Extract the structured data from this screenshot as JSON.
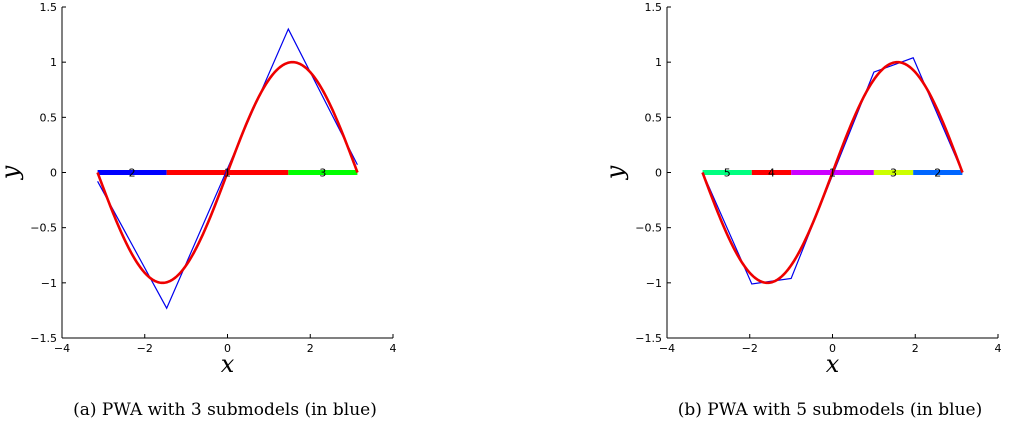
{
  "chart_data": [
    {
      "type": "line",
      "caption": "(a) PWA with 3 submodels (in blue)",
      "xlabel": "x",
      "ylabel": "y",
      "xlim": [
        -4,
        4
      ],
      "ylim": [
        -1.5,
        1.5
      ],
      "xticks": [
        "−4",
        "−2",
        "0",
        "2",
        "4"
      ],
      "yticks": [
        "−1.5",
        "−1",
        "−0.5",
        "0",
        "0.5",
        "1",
        "1.5"
      ],
      "series": [
        {
          "color": "#0000ee",
          "x": [
            -3.14,
            -1.47,
            1.47,
            3.14
          ],
          "y": [
            -0.08,
            -1.23,
            1.3,
            0.07
          ]
        },
        {
          "color": "#ee0000",
          "function": "sin",
          "x_range": [
            -3.14159,
            3.14159
          ]
        }
      ],
      "segments": [
        {
          "label": "2",
          "color": "#0000ff",
          "x": [
            -3.14,
            -1.47
          ]
        },
        {
          "label": "1",
          "color": "#ff0000",
          "x": [
            -1.47,
            1.47
          ]
        },
        {
          "label": "3",
          "color": "#00ff00",
          "x": [
            1.47,
            3.14
          ]
        }
      ]
    },
    {
      "type": "line",
      "caption": "(b) PWA with 5 submodels (in blue)",
      "xlabel": "x",
      "ylabel": "y",
      "xlim": [
        -4,
        4
      ],
      "ylim": [
        -1.5,
        1.5
      ],
      "xticks": [
        "−4",
        "−2",
        "0",
        "2",
        "4"
      ],
      "yticks": [
        "−1.5",
        "−1",
        "−0.5",
        "0",
        "0.5",
        "1",
        "1.5"
      ],
      "series": [
        {
          "color": "#0000ee",
          "x": [
            -3.14,
            -1.95,
            -1.0,
            1.0,
            1.95,
            3.14
          ],
          "y": [
            0.0,
            -1.01,
            -0.96,
            0.91,
            1.04,
            0.0
          ]
        },
        {
          "color": "#ee0000",
          "function": "sin",
          "x_range": [
            -3.14159,
            3.14159
          ]
        }
      ],
      "segments": [
        {
          "label": "5",
          "color": "#00ff80",
          "x": [
            -3.14,
            -1.95
          ]
        },
        {
          "label": "4",
          "color": "#ff0000",
          "x": [
            -1.95,
            -1.0
          ]
        },
        {
          "label": "1",
          "color": "#cc00ff",
          "x": [
            -1.0,
            1.0
          ]
        },
        {
          "label": "3",
          "color": "#ccff00",
          "x": [
            1.0,
            1.95
          ]
        },
        {
          "label": "2",
          "color": "#0066ff",
          "x": [
            1.95,
            3.14
          ]
        }
      ]
    }
  ]
}
